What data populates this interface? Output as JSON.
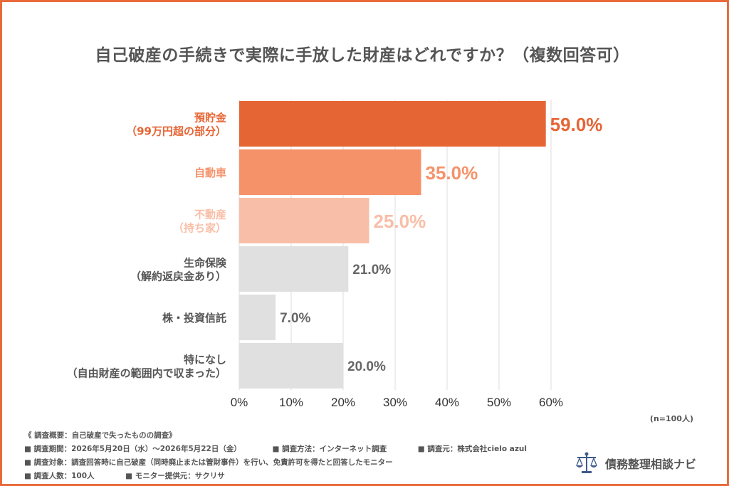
{
  "chart_data": {
    "type": "bar",
    "orientation": "horizontal",
    "title": "自己破産の手続きで実際に手放した財産はどれですか？（複数回答可）",
    "categories": [
      [
        "預貯金",
        "（99万円超の部分）"
      ],
      [
        "自動車"
      ],
      [
        "不動産",
        "（持ち家）"
      ],
      [
        "生命保険",
        "（解約返戻金あり）"
      ],
      [
        "株・投資信託"
      ],
      [
        "特になし",
        "（自由財産の範囲内で収まった）"
      ]
    ],
    "values": [
      59.0,
      35.0,
      25.0,
      21.0,
      7.0,
      20.0
    ],
    "value_labels": [
      "59.0%",
      "35.0%",
      "25.0%",
      "21.0%",
      "7.0%",
      "20.0%"
    ],
    "bar_colors": [
      "#e66535",
      "#f5926a",
      "#f9bea7",
      "#e0e0e0",
      "#e0e0e0",
      "#e0e0e0"
    ],
    "label_colors": [
      "#e66535",
      "#f5926a",
      "#f9bea7",
      "#555555",
      "#555555",
      "#555555"
    ],
    "xlim": [
      0,
      60
    ],
    "xticks": [
      0,
      10,
      20,
      30,
      40,
      50,
      60
    ],
    "xtick_labels": [
      "0%",
      "10%",
      "20%",
      "30%",
      "40%",
      "50%",
      "60%"
    ],
    "grid": true
  },
  "sample_size": "(n=100人)",
  "survey_notes": {
    "heading": "《 調査概要：自己破産で失ったものの調査》",
    "period": "■ 調査期間：2026年5月20日（水）〜2026年5月22日（金）",
    "method": "■ 調査方法：インターネット調査",
    "source": "■ 調査元：株式会社cielo azul",
    "target": "■ 調査対象：調査回答時に自己破産（同時廃止または管財事件）を行い、免責許可を得たと回答したモニター",
    "count": "■ 調査人数：100人",
    "provider": "■ モニター提供元：サクリサ"
  },
  "brand": {
    "name": "債務整理相談ナビ",
    "icon": "scales-of-justice-icon"
  }
}
